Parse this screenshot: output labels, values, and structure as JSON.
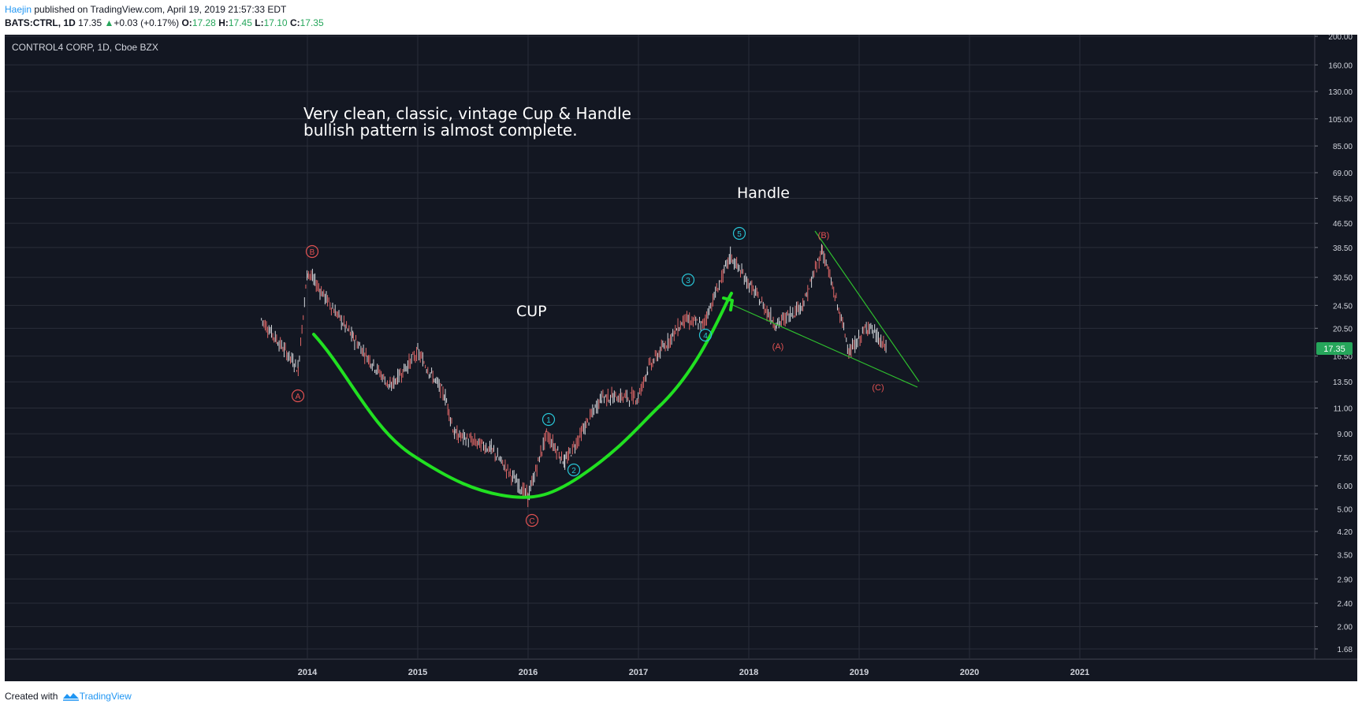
{
  "header": {
    "author": "Haejin",
    "published_text": " published on TradingView.com, April 19, 2019 21:57:33 EDT",
    "symbol": "BATS:CTRL, 1D",
    "last": "17.35",
    "change_arrow": "▲",
    "change": "+0.03 (+0.17%)",
    "open_label": "O:",
    "open": "17.28",
    "high_label": "H:",
    "high": "17.45",
    "low_label": "L:",
    "low": "17.10",
    "close_label": "C:",
    "close": "17.35"
  },
  "chart_title": "CONTROL4 CORP, 1D, Cboe BZX",
  "annotations": {
    "headline_line1": "Very clean, classic, vintage Cup & Handle",
    "headline_line2": "bullish pattern is almost complete.",
    "cup": "CUP",
    "handle": "Handle"
  },
  "wave_labels": {
    "A_circle": "A",
    "B_circle": "B",
    "C_circle": "C",
    "w1": "1",
    "w2": "2",
    "w3": "3",
    "w4": "4",
    "w5": "5",
    "A_paren": "(A)",
    "B_paren": "(B)",
    "C_paren": "(C)"
  },
  "price_badge": "17.35",
  "footer": {
    "created_with": "Created with",
    "brand": "TradingView"
  },
  "colors": {
    "background": "#131722",
    "grid": "#2a2e39",
    "up_candle": "#d5d8dd",
    "down_candle": "#e06767",
    "cup_line": "#21e021",
    "trendline": "#2ebd2e",
    "wave_cyan": "#29c5d6",
    "wave_red": "#e05151",
    "price_badge": "#26a65b"
  },
  "chart_data": {
    "type": "candlestick",
    "title": "CONTROL4 CORP, 1D, Cboe BZX",
    "y_scale": "log",
    "y_ticks": [
      "200.00",
      "160.00",
      "130.00",
      "105.00",
      "85.00",
      "69.00",
      "56.50",
      "46.50",
      "38.50",
      "30.50",
      "24.50",
      "20.50",
      "16.50",
      "13.50",
      "11.00",
      "9.00",
      "7.50",
      "6.00",
      "5.00",
      "4.20",
      "3.50",
      "2.90",
      "2.40",
      "2.00",
      "1.68"
    ],
    "x_ticks": [
      "2014",
      "2015",
      "2016",
      "2017",
      "2018",
      "2019",
      "2020",
      "2021"
    ],
    "approx_price_path": [
      {
        "date": "2013-08",
        "price": 22
      },
      {
        "date": "2013-12",
        "price": 15
      },
      {
        "date": "2014-01",
        "price": 32
      },
      {
        "date": "2014-06",
        "price": 19
      },
      {
        "date": "2014-10",
        "price": 13
      },
      {
        "date": "2015-01",
        "price": 17
      },
      {
        "date": "2015-04",
        "price": 12
      },
      {
        "date": "2015-05",
        "price": 9
      },
      {
        "date": "2015-09",
        "price": 8
      },
      {
        "date": "2016-01",
        "price": 5.5
      },
      {
        "date": "2016-03",
        "price": 9
      },
      {
        "date": "2016-05",
        "price": 7.2
      },
      {
        "date": "2016-09",
        "price": 12
      },
      {
        "date": "2017-01",
        "price": 12
      },
      {
        "date": "2017-02",
        "price": 15
      },
      {
        "date": "2017-06",
        "price": 22
      },
      {
        "date": "2017-08",
        "price": 21
      },
      {
        "date": "2017-11",
        "price": 36
      },
      {
        "date": "2018-04",
        "price": 21
      },
      {
        "date": "2018-07",
        "price": 25
      },
      {
        "date": "2018-09",
        "price": 38
      },
      {
        "date": "2018-12",
        "price": 17
      },
      {
        "date": "2019-02",
        "price": 21
      },
      {
        "date": "2019-04",
        "price": 17.35
      }
    ]
  }
}
